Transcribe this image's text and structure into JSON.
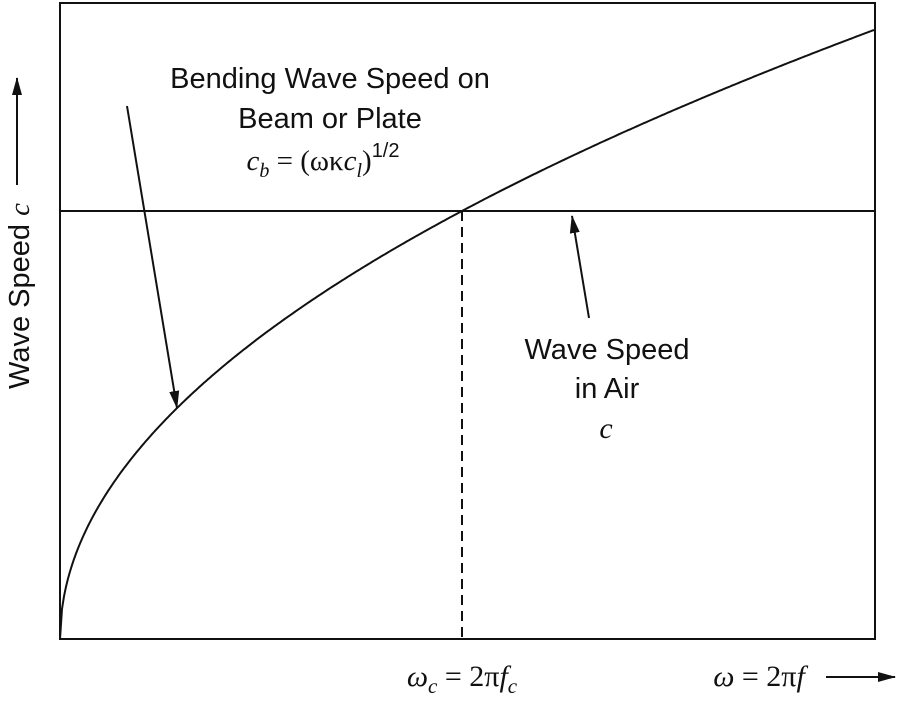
{
  "y_axis": {
    "label_prefix": "Wave Speed ",
    "label_var": "c"
  },
  "x_axis": {
    "critical": {
      "omega": "ω",
      "sub": "c",
      "eq": " = 2π",
      "f": "f",
      "fsub": "c"
    },
    "main": {
      "omega": "ω",
      "eq": " = 2π",
      "f": "f"
    }
  },
  "bending_label": {
    "line1": "Bending Wave Speed on",
    "line2": "Beam or Plate",
    "formula": {
      "c": "c",
      "sub": "b",
      "eq": " = (ωκ",
      "cl": "c",
      "clsub": "l",
      "close": ")",
      "exp": "1/2"
    }
  },
  "air_label": {
    "line1": "Wave Speed",
    "line2": "in Air",
    "var": "c"
  },
  "colors": {
    "stroke": "#111111",
    "background": "#ffffff"
  }
}
